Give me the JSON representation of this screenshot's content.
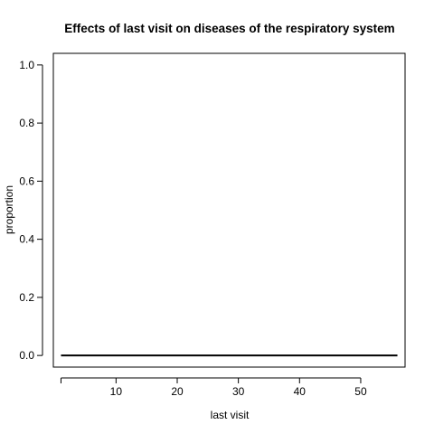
{
  "chart_data": {
    "type": "line",
    "title": "Effects of last visit on diseases of the respiratory system",
    "xlabel": "last visit",
    "ylabel": "proportion",
    "xlim": [
      -0.25,
      57.25
    ],
    "ylim": [
      -0.04,
      1.04
    ],
    "x_ticks": [
      10,
      20,
      30,
      40,
      50
    ],
    "y_ticks": [
      0.0,
      0.2,
      0.4,
      0.6,
      0.8,
      1.0
    ],
    "y_tick_labels": [
      "0.0",
      "0.2",
      "0.4",
      "0.6",
      "0.8",
      "1.0"
    ],
    "grid": false,
    "series": [
      {
        "x": [
          1,
          56
        ],
        "y": [
          0,
          0
        ],
        "color": "#000000"
      }
    ],
    "x_axis_first_tick": 0
  }
}
